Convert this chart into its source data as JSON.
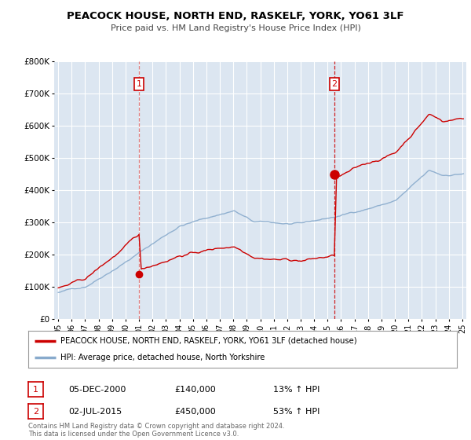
{
  "title": "PEACOCK HOUSE, NORTH END, RASKELF, YORK, YO61 3LF",
  "subtitle": "Price paid vs. HM Land Registry's House Price Index (HPI)",
  "legend_line1": "PEACOCK HOUSE, NORTH END, RASKELF, YORK, YO61 3LF (detached house)",
  "legend_line2": "HPI: Average price, detached house, North Yorkshire",
  "annotation1_date": "05-DEC-2000",
  "annotation1_price": "£140,000",
  "annotation1_hpi": "13% ↑ HPI",
  "annotation2_date": "02-JUL-2015",
  "annotation2_price": "£450,000",
  "annotation2_hpi": "53% ↑ HPI",
  "footer": "Contains HM Land Registry data © Crown copyright and database right 2024.\nThis data is licensed under the Open Government Licence v3.0.",
  "xlim_low": 1994.7,
  "xlim_high": 2025.3,
  "ylim_low": 0,
  "ylim_high": 800000,
  "transaction1_year": 2001.0,
  "transaction1_price": 140000,
  "transaction2_year": 2015.5,
  "transaction2_price": 450000,
  "red_color": "#cc0000",
  "blue_color": "#88aacc",
  "background_color": "#ffffff",
  "plot_bg_color": "#dce6f1"
}
